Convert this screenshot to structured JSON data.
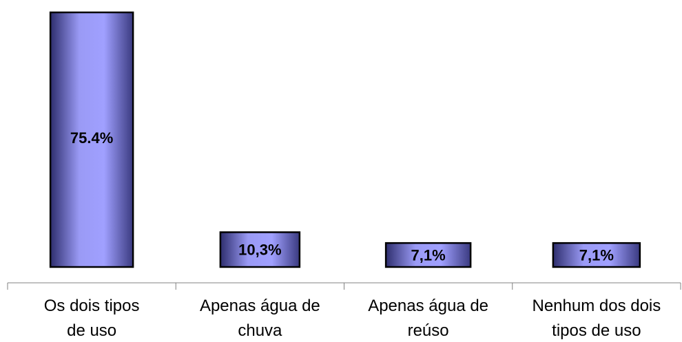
{
  "chart_data": {
    "type": "bar",
    "categories": [
      [
        "Os dois tipos",
        "de uso"
      ],
      [
        "Apenas água de",
        "chuva"
      ],
      [
        "Apenas água de",
        "reúso"
      ],
      [
        "Nenhum dos dois",
        "tipos de uso"
      ]
    ],
    "values": [
      75.4,
      10.3,
      7.1,
      7.1
    ],
    "data_labels": [
      "75.4%",
      "10,3%",
      "7,1%",
      "7,1%"
    ],
    "title": "",
    "xlabel": "",
    "ylabel": "",
    "ylim": [
      0,
      80
    ],
    "grid": false,
    "legend": "none",
    "colors": {
      "bar_light": "#a0a0ff",
      "bar_dark": "#2e2e6e",
      "outline": "#000000",
      "axis": "#808080"
    }
  }
}
